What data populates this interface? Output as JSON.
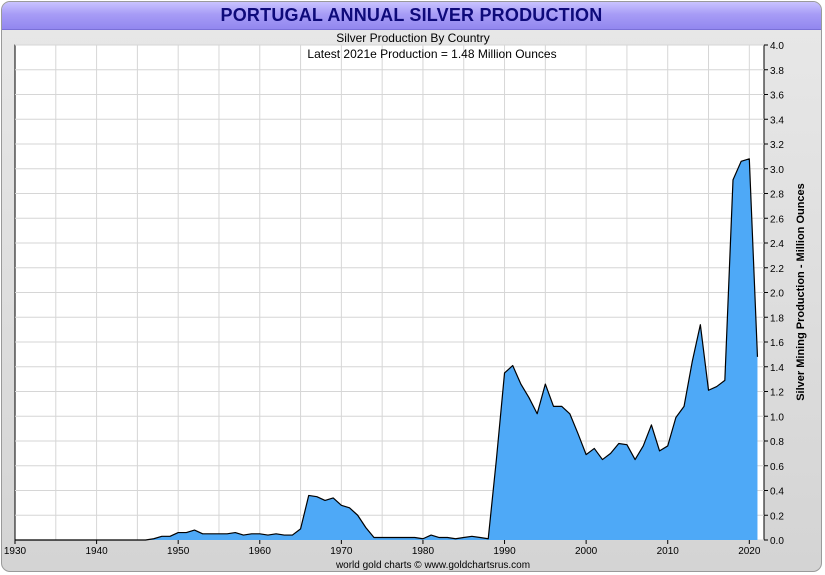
{
  "header": {
    "title": "PORTUGAL ANNUAL SILVER PRODUCTION"
  },
  "footer": {
    "credit": "world gold charts © www.goldchartsrus.com"
  },
  "colors": {
    "area_fill": "#4ea9f7",
    "area_line": "#000000",
    "grid": "#d6d6d6",
    "title_text": "#0e0a7a"
  },
  "chart_data": {
    "type": "area",
    "title": "Silver Production By Country",
    "subtitle": "Latest 2021e Production = 1.48 Million Ounces",
    "xlabel": "",
    "ylabel": "Silver Mining Production - Million Ounces",
    "xlim": [
      1930,
      2021
    ],
    "ylim": [
      0,
      4.0
    ],
    "x_ticks": [
      1930,
      1940,
      1950,
      1960,
      1970,
      1980,
      1990,
      2000,
      2010,
      2020
    ],
    "y_ticks": [
      "0.0",
      "0.2",
      "0.4",
      "0.6",
      "0.8",
      "1.0",
      "1.2",
      "1.4",
      "1.6",
      "1.8",
      "2.0",
      "2.2",
      "2.4",
      "2.6",
      "2.8",
      "3.0",
      "3.2",
      "3.4",
      "3.6",
      "3.8",
      "4.0"
    ],
    "grid": true,
    "series": [
      {
        "name": "Portugal",
        "x": [
          1930,
          1946,
          1947,
          1948,
          1949,
          1950,
          1951,
          1952,
          1953,
          1954,
          1955,
          1956,
          1957,
          1958,
          1959,
          1960,
          1961,
          1962,
          1963,
          1964,
          1965,
          1966,
          1967,
          1968,
          1969,
          1970,
          1971,
          1972,
          1973,
          1974,
          1975,
          1976,
          1977,
          1978,
          1979,
          1980,
          1981,
          1982,
          1983,
          1984,
          1985,
          1986,
          1987,
          1988,
          1989,
          1990,
          1991,
          1992,
          1993,
          1994,
          1995,
          1996,
          1997,
          1998,
          1999,
          2000,
          2001,
          2002,
          2003,
          2004,
          2005,
          2006,
          2007,
          2008,
          2009,
          2010,
          2011,
          2012,
          2013,
          2014,
          2015,
          2016,
          2017,
          2018,
          2019,
          2020,
          2021
        ],
        "values": [
          0,
          0,
          0.01,
          0.03,
          0.03,
          0.06,
          0.06,
          0.08,
          0.05,
          0.05,
          0.05,
          0.05,
          0.06,
          0.04,
          0.05,
          0.05,
          0.04,
          0.05,
          0.04,
          0.04,
          0.09,
          0.36,
          0.35,
          0.32,
          0.34,
          0.28,
          0.26,
          0.2,
          0.1,
          0.02,
          0.02,
          0.02,
          0.02,
          0.02,
          0.02,
          0.01,
          0.04,
          0.02,
          0.02,
          0.01,
          0.02,
          0.03,
          0.02,
          0.01,
          0.65,
          1.35,
          1.41,
          1.26,
          1.15,
          1.02,
          1.26,
          1.08,
          1.08,
          1.02,
          0.86,
          0.69,
          0.74,
          0.65,
          0.7,
          0.78,
          0.77,
          0.65,
          0.76,
          0.93,
          0.72,
          0.76,
          0.99,
          1.08,
          1.44,
          1.74,
          1.21,
          1.24,
          1.29,
          2.91,
          3.06,
          3.08,
          1.48
        ]
      }
    ]
  }
}
